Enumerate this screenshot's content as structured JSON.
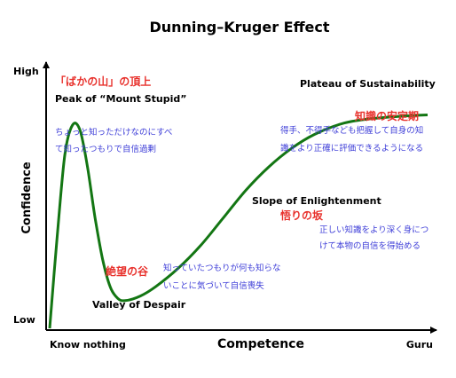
{
  "chart_data": {
    "type": "line",
    "title": "Dunning–Kruger Effect",
    "xlabel": "Competence",
    "ylabel": "Confidence",
    "x_ticks": [
      "Know nothing",
      "Guru"
    ],
    "y_ticks": [
      "Low",
      "High"
    ],
    "xlim": [
      0,
      100
    ],
    "ylim": [
      0,
      100
    ],
    "grid": false,
    "series": [
      {
        "color": "#137613",
        "points": [
          [
            0,
            0
          ],
          [
            2,
            40
          ],
          [
            4,
            75
          ],
          [
            6,
            88
          ],
          [
            8,
            86
          ],
          [
            10,
            70
          ],
          [
            12,
            48
          ],
          [
            14,
            30
          ],
          [
            16,
            18
          ],
          [
            18,
            13
          ],
          [
            20,
            12
          ],
          [
            24,
            14
          ],
          [
            28,
            18
          ],
          [
            34,
            26
          ],
          [
            40,
            36
          ],
          [
            46,
            48
          ],
          [
            52,
            60
          ],
          [
            58,
            70
          ],
          [
            64,
            78
          ],
          [
            70,
            84
          ],
          [
            78,
            89
          ],
          [
            86,
            91
          ],
          [
            94,
            92
          ],
          [
            100,
            92.5
          ]
        ]
      }
    ],
    "annotations": [
      {
        "title_jp": "「ばかの山」の頂上",
        "title_en": "Peak of “Mount Stupid”",
        "note": [
          "ちょっと知っただけなのにすべ",
          "て知ったつもりで自信過剰"
        ]
      },
      {
        "title_jp": "絶望の谷",
        "title_en": "Valley of Despair",
        "note": [
          "知っていたつもりが何も知らな",
          "いことに気づいて自信喪失"
        ]
      },
      {
        "title_jp": "悟りの坂",
        "title_en": "Slope of Enlightenment",
        "note": [
          "正しい知識をより深く身につ",
          "けて本物の自信を得始める"
        ]
      },
      {
        "title_jp": "知識の安定期",
        "title_en": "Plateau of Sustainability",
        "note": [
          "得手、不得手なども把握して自身の知",
          "識をより正確に評価できるようになる"
        ]
      }
    ]
  },
  "colors": {
    "curve": "#137613",
    "japanese_title": "#e8322d",
    "japanese_note": "#3f3fd8",
    "axis": "#000000"
  }
}
